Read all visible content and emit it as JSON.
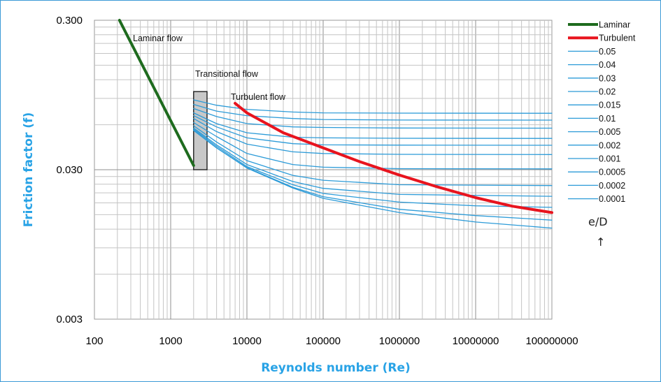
{
  "chart_data": {
    "type": "line",
    "title": "",
    "xlabel": "Reynolds number (Re)",
    "ylabel": "Friction factor (f)",
    "x_scale": "log",
    "y_scale": "log",
    "xlim": [
      100,
      100000000
    ],
    "ylim": [
      0.003,
      0.3
    ],
    "x_ticks": [
      "100",
      "1000",
      "10000",
      "100000",
      "1000000",
      "10000000",
      "100000000"
    ],
    "y_ticks": [
      "0.300",
      "0.030",
      "0.003"
    ],
    "grid": true,
    "legend_position": "right",
    "series": [
      {
        "name": "Laminar",
        "color": "#1e6b1e",
        "x": [
          213,
          2000
        ],
        "y": [
          0.3,
          0.032
        ]
      },
      {
        "name": "Turbulent",
        "color": "#e8141e",
        "x": [
          7000,
          10000,
          30000,
          100000,
          300000,
          1000000,
          3000000,
          10000000,
          30000000,
          100000000
        ],
        "y": [
          0.0835,
          0.072,
          0.053,
          0.042,
          0.034,
          0.0276,
          0.0232,
          0.0195,
          0.0171,
          0.0155
        ]
      },
      {
        "name": "0.05",
        "color": "#2c9bd8",
        "x": [
          2000,
          4000,
          10000,
          40000,
          100000,
          1000000,
          100000000
        ],
        "y": [
          0.088,
          0.081,
          0.076,
          0.073,
          0.072,
          0.0717,
          0.0716
        ]
      },
      {
        "name": "0.04",
        "color": "#2c9bd8",
        "x": [
          2000,
          4000,
          10000,
          40000,
          100000,
          1000000,
          100000000
        ],
        "y": [
          0.082,
          0.074,
          0.069,
          0.066,
          0.065,
          0.0645,
          0.0644
        ]
      },
      {
        "name": "0.03",
        "color": "#2c9bd8",
        "x": [
          2000,
          4000,
          10000,
          40000,
          100000,
          1000000,
          100000000
        ],
        "y": [
          0.077,
          0.068,
          0.061,
          0.058,
          0.0575,
          0.057,
          0.0569
        ]
      },
      {
        "name": "0.02",
        "color": "#2c9bd8",
        "x": [
          2000,
          4000,
          10000,
          40000,
          100000,
          1000000,
          100000000
        ],
        "y": [
          0.072,
          0.061,
          0.053,
          0.0495,
          0.049,
          0.0487,
          0.0486
        ]
      },
      {
        "name": "0.015",
        "color": "#2c9bd8",
        "x": [
          2000,
          4000,
          10000,
          40000,
          100000,
          1000000,
          100000000
        ],
        "y": [
          0.069,
          0.058,
          0.049,
          0.0448,
          0.044,
          0.0438,
          0.0437
        ]
      },
      {
        "name": "0.01",
        "color": "#2c9bd8",
        "x": [
          2000,
          4000,
          10000,
          40000,
          100000,
          1000000,
          100000000
        ],
        "y": [
          0.066,
          0.054,
          0.0445,
          0.0395,
          0.0385,
          0.038,
          0.0379
        ]
      },
      {
        "name": "0.005",
        "color": "#2c9bd8",
        "x": [
          2000,
          4000,
          10000,
          40000,
          100000,
          1000000,
          100000000
        ],
        "y": [
          0.062,
          0.05,
          0.0385,
          0.0325,
          0.0312,
          0.0305,
          0.0304
        ]
      },
      {
        "name": "0.002",
        "color": "#2c9bd8",
        "x": [
          2000,
          4000,
          10000,
          40000,
          100000,
          1000000,
          100000000
        ],
        "y": [
          0.059,
          0.046,
          0.0345,
          0.0275,
          0.0255,
          0.0238,
          0.0235
        ]
      },
      {
        "name": "0.001",
        "color": "#2c9bd8",
        "x": [
          2000,
          4000,
          10000,
          40000,
          100000,
          1000000,
          100000000
        ],
        "y": [
          0.057,
          0.044,
          0.0325,
          0.025,
          0.0225,
          0.0205,
          0.0199
        ]
      },
      {
        "name": "0.0005",
        "color": "#2c9bd8",
        "x": [
          2000,
          4000,
          10000,
          40000,
          100000,
          1000000,
          10000000,
          100000000
        ],
        "y": [
          0.056,
          0.043,
          0.0315,
          0.0238,
          0.0208,
          0.0182,
          0.0172,
          0.0168
        ]
      },
      {
        "name": "0.0002",
        "color": "#2c9bd8",
        "x": [
          2000,
          4000,
          10000,
          40000,
          100000,
          1000000,
          10000000,
          100000000
        ],
        "y": [
          0.055,
          0.042,
          0.031,
          0.0229,
          0.0198,
          0.0163,
          0.0148,
          0.0138
        ]
      },
      {
        "name": "0.0001",
        "color": "#2c9bd8",
        "x": [
          2000,
          4000,
          10000,
          40000,
          100000,
          1000000,
          10000000,
          100000000
        ],
        "y": [
          0.055,
          0.042,
          0.0308,
          0.0226,
          0.0193,
          0.0155,
          0.0134,
          0.0122
        ]
      }
    ],
    "annotations": {
      "laminar_flow": "Laminar flow",
      "transitional_flow": "Transitional flow",
      "turbulent_flow": "Turbulent flow",
      "transitional_region": {
        "x": [
          2000,
          3000
        ],
        "y": [
          0.03,
          0.1
        ]
      }
    },
    "ed_label": "e/D",
    "ed_arrow": "↑"
  }
}
